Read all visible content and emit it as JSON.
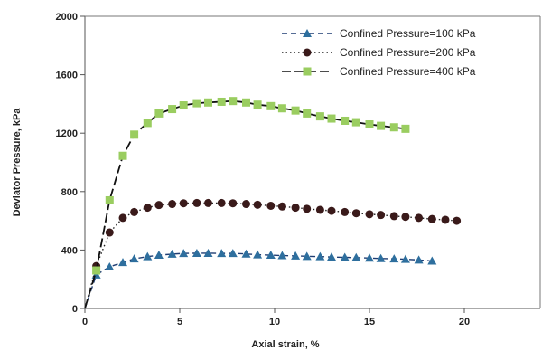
{
  "chart_data": {
    "type": "line",
    "title": "",
    "xlabel": "Axial strain, %",
    "ylabel": "Deviator Pressure, kPa",
    "xlim": [
      0,
      24
    ],
    "ylim": [
      0,
      2000
    ],
    "xticks": [
      0,
      5,
      10,
      15,
      20
    ],
    "yticks": [
      0,
      400,
      800,
      1200,
      1600,
      2000
    ],
    "xtick_labels": [
      "0",
      "5",
      "10",
      "15",
      "20"
    ],
    "ytick_labels": [
      "0",
      "400",
      "800",
      "1200",
      "1600",
      "2000"
    ],
    "grid": false,
    "legend": "top-right",
    "series": [
      {
        "name": "Confined Pressure=100 kPa",
        "line_style": "dashed",
        "marker": "triangle",
        "line_color": "#1f3d73",
        "marker_color": "#2e6f9e",
        "x": [
          0,
          0.6,
          1.3,
          2.0,
          2.6,
          3.3,
          3.9,
          4.6,
          5.2,
          5.9,
          6.5,
          7.2,
          7.8,
          8.5,
          9.1,
          9.8,
          10.4,
          11.1,
          11.7,
          12.4,
          13.0,
          13.7,
          14.3,
          15.0,
          15.6,
          16.3,
          16.9,
          17.6,
          18.3
        ],
        "y": [
          0,
          230,
          285,
          315,
          340,
          355,
          365,
          372,
          377,
          378,
          378,
          377,
          377,
          373,
          368,
          365,
          362,
          360,
          357,
          355,
          352,
          350,
          348,
          345,
          342,
          340,
          337,
          332,
          325
        ]
      },
      {
        "name": "Confined Pressure=200 kPa",
        "line_style": "dotted",
        "marker": "circle",
        "line_color": "#222222",
        "marker_color": "#3a1a1a",
        "x": [
          0,
          0.6,
          1.3,
          2.0,
          2.6,
          3.3,
          3.9,
          4.6,
          5.2,
          5.9,
          6.5,
          7.2,
          7.8,
          8.5,
          9.1,
          9.8,
          10.4,
          11.1,
          11.7,
          12.4,
          13.0,
          13.7,
          14.3,
          15.0,
          15.6,
          16.3,
          16.9,
          17.6,
          18.3,
          19.0,
          19.6
        ],
        "y": [
          0,
          290,
          520,
          620,
          660,
          690,
          708,
          715,
          720,
          722,
          722,
          722,
          720,
          715,
          710,
          703,
          698,
          690,
          682,
          675,
          668,
          660,
          652,
          645,
          640,
          632,
          627,
          620,
          612,
          607,
          600
        ]
      },
      {
        "name": "Confined Pressure=400 kPa",
        "line_style": "dashdot",
        "marker": "square",
        "line_color": "#111111",
        "marker_color": "#9acd60",
        "x": [
          0,
          0.6,
          1.3,
          2.0,
          2.6,
          3.3,
          3.9,
          4.6,
          5.2,
          5.9,
          6.5,
          7.2,
          7.8,
          8.5,
          9.1,
          9.8,
          10.4,
          11.1,
          11.7,
          12.4,
          13.0,
          13.7,
          14.3,
          15.0,
          15.6,
          16.3,
          16.9
        ],
        "y": [
          0,
          260,
          740,
          1045,
          1190,
          1270,
          1335,
          1365,
          1390,
          1405,
          1410,
          1415,
          1420,
          1410,
          1395,
          1385,
          1370,
          1355,
          1335,
          1315,
          1300,
          1285,
          1275,
          1260,
          1250,
          1240,
          1230
        ]
      }
    ]
  }
}
